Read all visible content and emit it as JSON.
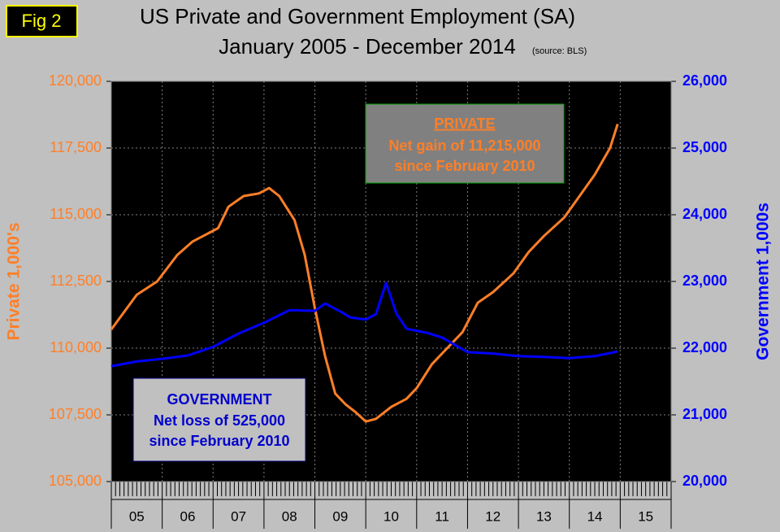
{
  "chart_data": {
    "type": "line",
    "figure_label": "Fig 2",
    "title": "US Private and Government Employment (SA)",
    "subtitle": "January 2005 - December 2014",
    "source": "(source: BLS)",
    "y_label": "Private 1,000's",
    "y2_label": "Government 1,000s",
    "xlim": [
      5,
      16
    ],
    "xticks": [
      {
        "value": 5.5,
        "label": "05"
      },
      {
        "value": 6.5,
        "label": "06"
      },
      {
        "value": 7.5,
        "label": "07"
      },
      {
        "value": 8.5,
        "label": "08"
      },
      {
        "value": 9.5,
        "label": "09"
      },
      {
        "value": 10.5,
        "label": "10"
      },
      {
        "value": 11.5,
        "label": "11"
      },
      {
        "value": 12.5,
        "label": "12"
      },
      {
        "value": 13.5,
        "label": "13"
      },
      {
        "value": 14.5,
        "label": "14"
      },
      {
        "value": 15.5,
        "label": "15"
      }
    ],
    "ylim": [
      105000,
      120000
    ],
    "yticks": [
      {
        "value": 105000,
        "label": "105,000"
      },
      {
        "value": 107500,
        "label": "107,500"
      },
      {
        "value": 110000,
        "label": "110,000"
      },
      {
        "value": 112500,
        "label": "112,500"
      },
      {
        "value": 115000,
        "label": "115,000"
      },
      {
        "value": 117500,
        "label": "117,500"
      },
      {
        "value": 120000,
        "label": "120,000"
      }
    ],
    "y2lim": [
      20000,
      26000
    ],
    "y2ticks": [
      {
        "value": 20000,
        "label": "20,000"
      },
      {
        "value": 21000,
        "label": "21,000"
      },
      {
        "value": 22000,
        "label": "22,000"
      },
      {
        "value": 23000,
        "label": "23,000"
      },
      {
        "value": 24000,
        "label": "24,000"
      },
      {
        "value": 25000,
        "label": "25,000"
      },
      {
        "value": 26000,
        "label": "26,000"
      }
    ],
    "grid": true,
    "series": [
      {
        "name": "Private",
        "color": "#ff7f27",
        "axis": "y",
        "x": [
          5.0,
          5.5,
          5.9,
          6.3,
          6.6,
          6.9,
          7.1,
          7.3,
          7.6,
          7.9,
          8.1,
          8.3,
          8.6,
          8.8,
          9.0,
          9.2,
          9.4,
          9.6,
          9.8,
          10.0,
          10.2,
          10.5,
          10.8,
          11.0,
          11.3,
          11.6,
          11.9,
          12.2,
          12.5,
          12.9,
          13.2,
          13.5,
          13.9,
          14.2,
          14.5,
          14.8,
          14.95
        ],
        "values": [
          110700,
          112000,
          112500,
          113500,
          114000,
          114300,
          114500,
          115300,
          115700,
          115800,
          116000,
          115700,
          114800,
          113500,
          111500,
          109700,
          108300,
          107900,
          107600,
          107250,
          107350,
          107800,
          108100,
          108500,
          109400,
          110000,
          110600,
          111700,
          112100,
          112800,
          113600,
          114200,
          114900,
          115700,
          116500,
          117500,
          118400
        ]
      },
      {
        "name": "Government",
        "color": "#0000ff",
        "axis": "y2",
        "x": [
          5.0,
          5.5,
          6.0,
          6.5,
          7.0,
          7.5,
          8.0,
          8.5,
          9.0,
          9.2,
          9.5,
          9.7,
          10.0,
          10.2,
          10.4,
          10.6,
          10.8,
          11.2,
          11.5,
          12.0,
          12.5,
          13.0,
          13.5,
          14.0,
          14.5,
          14.95
        ],
        "values": [
          21730,
          21800,
          21840,
          21890,
          22020,
          22220,
          22380,
          22570,
          22560,
          22670,
          22550,
          22460,
          22430,
          22510,
          22980,
          22520,
          22290,
          22230,
          22160,
          21940,
          21920,
          21880,
          21870,
          21850,
          21880,
          21950
        ]
      }
    ],
    "annotations": [
      {
        "lines": [
          "PRIVATE",
          "Net gain of 11,215,000",
          "since February 2010"
        ]
      },
      {
        "lines": [
          "GOVERNMENT",
          "Net loss of 525,000",
          "since February 2010"
        ]
      }
    ]
  }
}
